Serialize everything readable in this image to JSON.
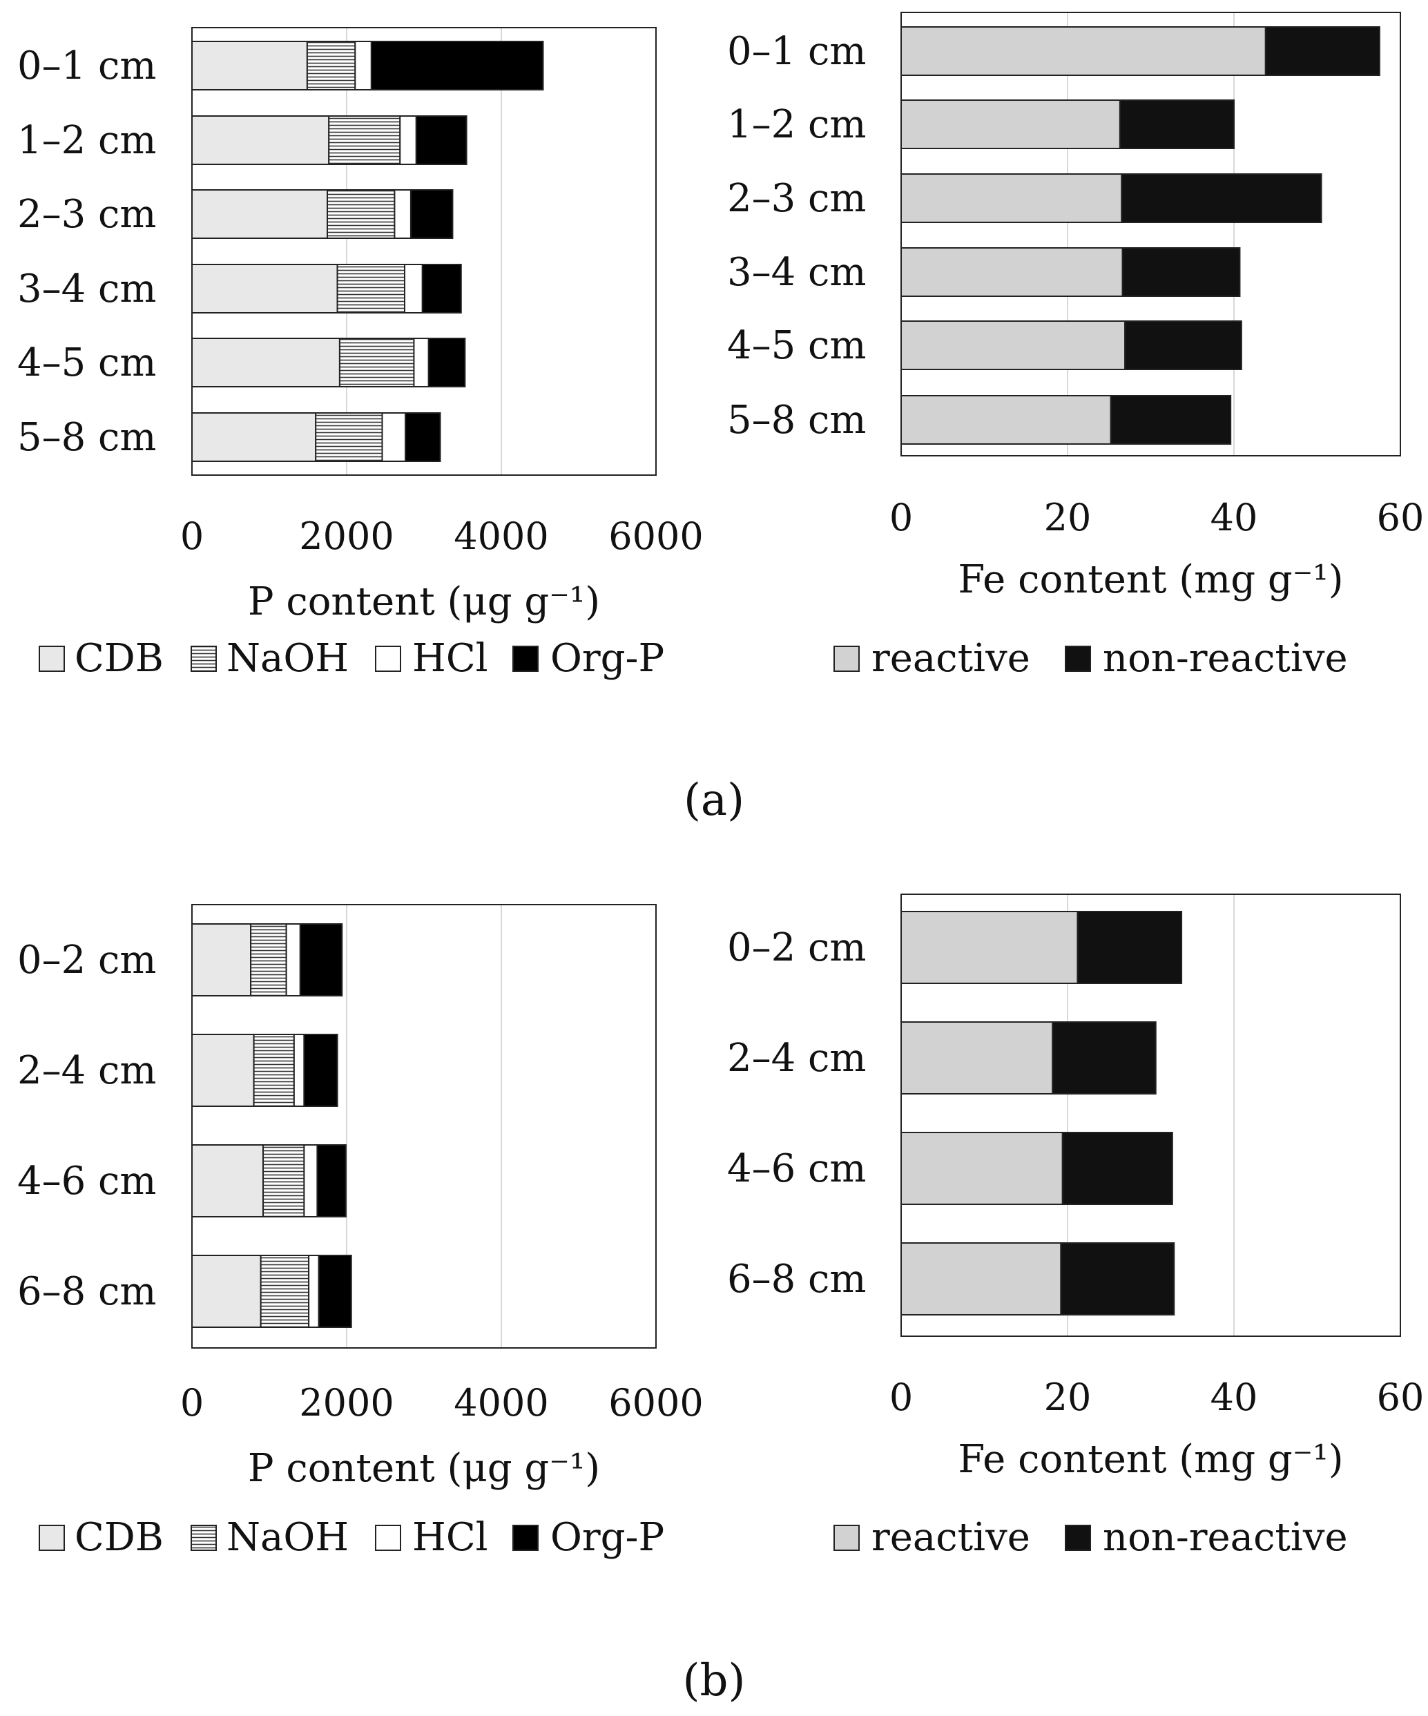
{
  "panel_labels": {
    "a": "(a)",
    "b": "(b)"
  },
  "colors": {
    "CDB": "#e8e8e8",
    "NaOH": "#ffffff",
    "NaOH_hatch": "#333333",
    "HCl": "#ffffff",
    "Org-P": "#000000",
    "reactive": "#d2d2d2",
    "non-reactive": "#111111",
    "border": "#222222",
    "grid": "#d8d8d8"
  },
  "chart_data": [
    {
      "id": "a-P",
      "type": "bar",
      "orientation": "horizontal",
      "stacked": true,
      "panel": "a",
      "categories": [
        "0–1 cm",
        "1–2 cm",
        "2–3 cm",
        "3–4 cm",
        "4–5 cm",
        "5–8 cm"
      ],
      "series": [
        {
          "name": "CDB",
          "values": [
            1490,
            1770,
            1750,
            1880,
            1910,
            1600
          ]
        },
        {
          "name": "NaOH",
          "values": [
            620,
            920,
            870,
            870,
            960,
            860
          ]
        },
        {
          "name": "HCl",
          "values": [
            210,
            210,
            210,
            230,
            190,
            300
          ]
        },
        {
          "name": "Org-P",
          "values": [
            2220,
            650,
            540,
            500,
            470,
            450
          ]
        }
      ],
      "xlabel": "P content (μg g⁻¹)",
      "xlim": [
        0,
        6000
      ],
      "xticks": [
        0,
        2000,
        4000,
        6000
      ],
      "legend": [
        "CDB",
        "NaOH",
        "HCl",
        "Org-P"
      ],
      "legend_position": "bottom"
    },
    {
      "id": "a-Fe",
      "type": "bar",
      "orientation": "horizontal",
      "stacked": true,
      "panel": "a",
      "categories": [
        "0–1 cm",
        "1–2 cm",
        "2–3 cm",
        "3–4 cm",
        "4–5 cm",
        "5–8 cm"
      ],
      "series": [
        {
          "name": "reactive",
          "values": [
            43.8,
            26.3,
            26.5,
            26.6,
            26.9,
            25.2
          ]
        },
        {
          "name": "non-reactive",
          "values": [
            13.7,
            13.7,
            24.0,
            14.1,
            14.0,
            14.4
          ]
        }
      ],
      "xlabel": "Fe content (mg g⁻¹)",
      "xlim": [
        0,
        60
      ],
      "xticks": [
        0,
        20,
        40,
        60
      ],
      "legend": [
        "reactive",
        "non-reactive"
      ],
      "legend_position": "bottom"
    },
    {
      "id": "b-P",
      "type": "bar",
      "orientation": "horizontal",
      "stacked": true,
      "panel": "b",
      "categories": [
        "0–2 cm",
        "2–4 cm",
        "4–6 cm",
        "6–8 cm"
      ],
      "series": [
        {
          "name": "CDB",
          "values": [
            760,
            800,
            920,
            890
          ]
        },
        {
          "name": "NaOH",
          "values": [
            460,
            520,
            530,
            620
          ]
        },
        {
          "name": "HCl",
          "values": [
            180,
            130,
            170,
            130
          ]
        },
        {
          "name": "Org-P",
          "values": [
            540,
            430,
            370,
            420
          ]
        }
      ],
      "xlabel": "P content (μg g⁻¹)",
      "xlim": [
        0,
        6000
      ],
      "xticks": [
        0,
        2000,
        4000,
        6000
      ],
      "legend": [
        "CDB",
        "NaOH",
        "HCl",
        "Org-P"
      ],
      "legend_position": "bottom"
    },
    {
      "id": "b-Fe",
      "type": "bar",
      "orientation": "horizontal",
      "stacked": true,
      "panel": "b",
      "categories": [
        "0–2 cm",
        "2–4 cm",
        "4–6 cm",
        "6–8 cm"
      ],
      "series": [
        {
          "name": "reactive",
          "values": [
            21.2,
            18.2,
            19.4,
            19.2
          ]
        },
        {
          "name": "non-reactive",
          "values": [
            12.5,
            12.4,
            13.2,
            13.6
          ]
        }
      ],
      "xlabel": "Fe content (mg g⁻¹)",
      "xlim": [
        0,
        60
      ],
      "xticks": [
        0,
        20,
        40,
        60
      ],
      "legend": [
        "reactive",
        "non-reactive"
      ],
      "legend_position": "bottom"
    }
  ]
}
